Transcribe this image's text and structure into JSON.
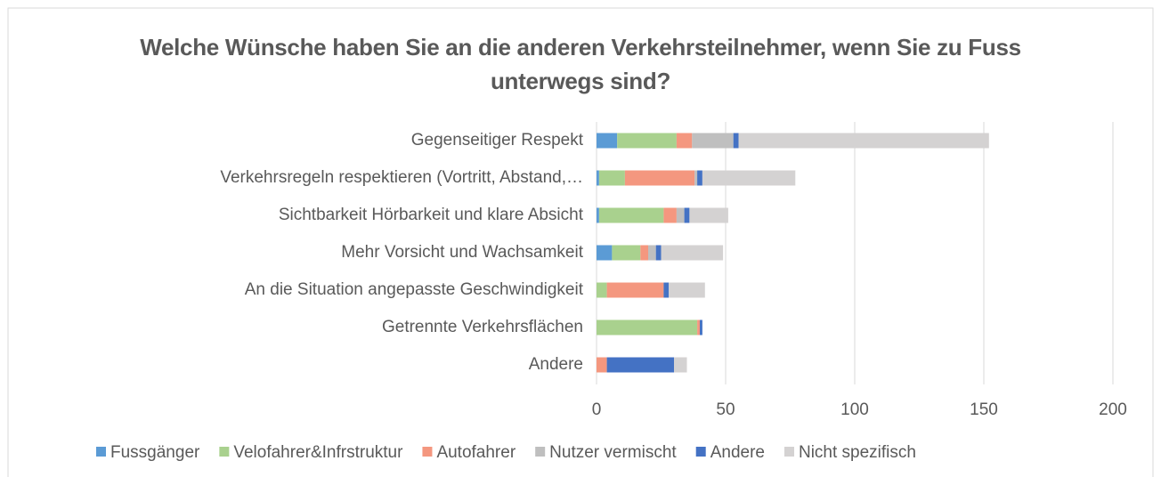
{
  "chart_data": {
    "type": "stacked_bar_horizontal",
    "title": "Welche Wünsche haben Sie an die anderen Verkehrsteilnehmer, wenn Sie zu Fuss unterwegs sind?",
    "categories": [
      "Gegenseitiger Respekt",
      "Verkehrsregeln respektieren (Vortritt, Abstand,…",
      "Sichtbarkeit Hörbarkeit und klare Absicht",
      "Mehr Vorsicht und Wachsamkeit",
      "An die Situation angepasste Geschwindigkeit",
      "Getrennte Verkehrsflächen",
      "Andere"
    ],
    "series": [
      {
        "name": "Fussgänger",
        "color": "#5b9bd5",
        "values": [
          8,
          1,
          1,
          6,
          0,
          0,
          0
        ]
      },
      {
        "name": "Velofahrer&Infrstruktur",
        "color": "#a9d18e",
        "values": [
          23,
          10,
          25,
          11,
          4,
          39,
          0
        ]
      },
      {
        "name": "Autofahrer",
        "color": "#f4977f",
        "values": [
          6,
          27,
          5,
          3,
          22,
          1,
          4
        ]
      },
      {
        "name": "Nutzer vermischt",
        "color": "#bfbfbf",
        "values": [
          16,
          1,
          3,
          3,
          0,
          0,
          0
        ]
      },
      {
        "name": "Andere",
        "color": "#4472c4",
        "values": [
          2,
          2,
          2,
          2,
          2,
          1,
          26
        ]
      },
      {
        "name": "Nicht spezifisch",
        "color": "#d4d2d2",
        "values": [
          97,
          36,
          15,
          24,
          14,
          0,
          5
        ]
      }
    ],
    "xlim": [
      0,
      200
    ],
    "xticks": [
      0,
      50,
      100,
      150,
      200
    ],
    "grid": true,
    "legend": "bottom"
  }
}
